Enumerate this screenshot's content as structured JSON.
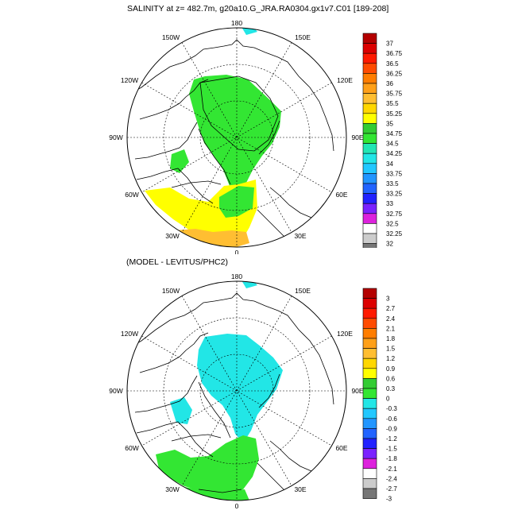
{
  "figure": {
    "title": "SALINITY at z= 482.7m, g20a10.G_JRA.RA0304.gx1v7.C01 [189-208]",
    "lower_title": "(MODEL - LEVITUS/PHC2)"
  },
  "longitude_labels": {
    "top": "180",
    "upper_left": "150W",
    "upper_right": "150E",
    "mid_upper_left": "120W",
    "mid_upper_right": "120E",
    "left": "90W",
    "right": "90E",
    "lower_left": "60W",
    "lower_right": "60E",
    "bottom_left": "30W",
    "bottom_right": "30E",
    "bottom": "0"
  },
  "upper_map": {
    "colorbar_labels": [
      "37",
      "36.75",
      "36.5",
      "36.25",
      "36",
      "35.75",
      "35.5",
      "35.25",
      "35",
      "34.75",
      "34.5",
      "34.25",
      "34",
      "33.75",
      "33.5",
      "33.25",
      "33",
      "32.75",
      "32.5",
      "32.25",
      "32"
    ],
    "colorbar_colors": [
      "#b40000",
      "#dc0000",
      "#ff1a00",
      "#ff4b00",
      "#ff7d00",
      "#ffa019",
      "#ffbe32",
      "#ffd700",
      "#ffff00",
      "#33cc33",
      "#33e633",
      "#22e6b4",
      "#22e6e6",
      "#22c8ff",
      "#2296ff",
      "#2264ff",
      "#2222ff",
      "#7a22ff",
      "#dd22dd",
      "#ffffff",
      "#cccccc",
      "#777777"
    ]
  },
  "lower_map": {
    "colorbar_labels": [
      "3",
      "2.7",
      "2.4",
      "2.1",
      "1.8",
      "1.5",
      "1.2",
      "0.9",
      "0.6",
      "0.3",
      "0",
      "-0.3",
      "-0.6",
      "-0.9",
      "-1.2",
      "-1.5",
      "-1.8",
      "-2.1",
      "-2.4",
      "-2.7",
      "-3"
    ],
    "colorbar_colors": [
      "#b40000",
      "#dc0000",
      "#ff1a00",
      "#ff4b00",
      "#ff7d00",
      "#ffa019",
      "#ffbe32",
      "#ffd700",
      "#ffff00",
      "#33cc33",
      "#33e633",
      "#22e6e6",
      "#22c8ff",
      "#2296ff",
      "#2264ff",
      "#2222ff",
      "#7a22ff",
      "#dd22dd",
      "#ffffff",
      "#cccccc",
      "#777777"
    ]
  },
  "colors": {
    "green": "#33e633",
    "yellow": "#ffff00",
    "orange": "#ffbe32",
    "cyan": "#22e6e6"
  }
}
